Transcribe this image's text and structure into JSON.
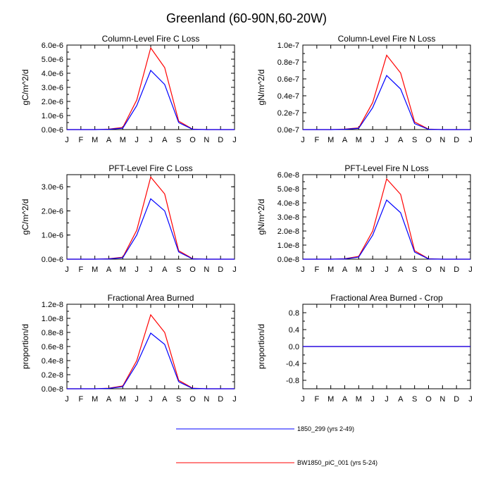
{
  "figure_title": "Greenland (60-90N,60-20W)",
  "colors": {
    "series_1": "#0000ff",
    "series_2": "#ff0000",
    "axis": "#000000"
  },
  "legend": [
    {
      "label": "1850_299 (yrs 2-49)",
      "color": "#0000ff"
    },
    {
      "label": "BW1850_piC_001 (yrs 5-24)",
      "color": "#ff0000"
    }
  ],
  "chart_data": [
    {
      "type": "line",
      "title": "Column-Level Fire C Loss",
      "ylabel": "gC/m^2/d",
      "categories": [
        "J",
        "F",
        "M",
        "A",
        "M",
        "J",
        "J",
        "A",
        "S",
        "O",
        "N",
        "D",
        "J"
      ],
      "ylim": [
        0,
        6e-06
      ],
      "yticks": [
        0,
        1e-06,
        2e-06,
        3e-06,
        4e-06,
        5e-06,
        6e-06
      ],
      "yticklabels": [
        "0.0e-6",
        "1.0e-6",
        "2.0e-6",
        "3.0e-6",
        "4.0e-6",
        "5.0e-6",
        "6.0e-6"
      ],
      "series": [
        {
          "name": "1850_299 (yrs 2-49)",
          "color": "#0000ff",
          "values": [
            0,
            0,
            0,
            2e-08,
            1e-07,
            1.7e-06,
            4.2e-06,
            3.2e-06,
            5e-07,
            2e-08,
            0,
            0,
            0
          ]
        },
        {
          "name": "BW1850_piC_001 (yrs 5-24)",
          "color": "#ff0000",
          "values": [
            0,
            0,
            0,
            3e-08,
            1.5e-07,
            2.1e-06,
            5.8e-06,
            4.4e-06,
            6e-07,
            3e-08,
            0,
            0,
            0
          ]
        }
      ]
    },
    {
      "type": "line",
      "title": "Column-Level Fire N Loss",
      "ylabel": "gN/m^2/d",
      "categories": [
        "J",
        "F",
        "M",
        "A",
        "M",
        "J",
        "J",
        "A",
        "S",
        "O",
        "N",
        "D",
        "J"
      ],
      "ylim": [
        0,
        1e-07
      ],
      "yticks": [
        0,
        2e-08,
        4e-08,
        6e-08,
        8e-08,
        1e-07
      ],
      "yticklabels": [
        "0.0e-7",
        "0.2e-7",
        "0.4e-7",
        "0.6e-7",
        "0.8e-7",
        "1.0e-7"
      ],
      "series": [
        {
          "name": "1850_299 (yrs 2-49)",
          "color": "#0000ff",
          "values": [
            0,
            0,
            0,
            3e-10,
            1.5e-09,
            2.6e-08,
            6.4e-08,
            4.8e-08,
            7e-09,
            3e-10,
            0,
            0,
            0
          ]
        },
        {
          "name": "BW1850_piC_001 (yrs 5-24)",
          "color": "#ff0000",
          "values": [
            0,
            0,
            0,
            5e-10,
            2e-09,
            3.2e-08,
            8.8e-08,
            6.7e-08,
            9e-09,
            5e-10,
            0,
            0,
            0
          ]
        }
      ]
    },
    {
      "type": "line",
      "title": "PFT-Level Fire C Loss",
      "ylabel": "gC/m^2/d",
      "categories": [
        "J",
        "F",
        "M",
        "A",
        "M",
        "J",
        "J",
        "A",
        "S",
        "O",
        "N",
        "D",
        "J"
      ],
      "ylim": [
        0,
        3.5e-06
      ],
      "yticks": [
        0,
        1e-06,
        2e-06,
        3e-06
      ],
      "yticklabels": [
        "0.0e-6",
        "1.0e-6",
        "2.0e-6",
        "3.0e-6"
      ],
      "series": [
        {
          "name": "1850_299 (yrs 2-49)",
          "color": "#0000ff",
          "values": [
            0,
            0,
            0,
            1e-08,
            6e-08,
            1e-06,
            2.5e-06,
            2e-06,
            3e-07,
            1e-08,
            0,
            0,
            0
          ]
        },
        {
          "name": "BW1850_piC_001 (yrs 5-24)",
          "color": "#ff0000",
          "values": [
            0,
            0,
            0,
            2e-08,
            8e-08,
            1.2e-06,
            3.4e-06,
            2.7e-06,
            3.5e-07,
            2e-08,
            0,
            0,
            0
          ]
        }
      ]
    },
    {
      "type": "line",
      "title": "PFT-Level Fire N Loss",
      "ylabel": "gN/m^2/d",
      "categories": [
        "J",
        "F",
        "M",
        "A",
        "M",
        "J",
        "J",
        "A",
        "S",
        "O",
        "N",
        "D",
        "J"
      ],
      "ylim": [
        0,
        6e-08
      ],
      "yticks": [
        0,
        1e-08,
        2e-08,
        3e-08,
        4e-08,
        5e-08,
        6e-08
      ],
      "yticklabels": [
        "0.0e-8",
        "1.0e-8",
        "2.0e-8",
        "3.0e-8",
        "4.0e-8",
        "5.0e-8",
        "6.0e-8"
      ],
      "series": [
        {
          "name": "1850_299 (yrs 2-49)",
          "color": "#0000ff",
          "values": [
            0,
            0,
            0,
            2e-10,
            1.5e-09,
            1.7e-08,
            4.2e-08,
            3.3e-08,
            5e-09,
            2e-10,
            0,
            0,
            0
          ]
        },
        {
          "name": "BW1850_piC_001 (yrs 5-24)",
          "color": "#ff0000",
          "values": [
            0,
            0,
            0,
            3e-10,
            2e-09,
            2e-08,
            5.7e-08,
            4.6e-08,
            6e-09,
            3e-10,
            0,
            0,
            0
          ]
        }
      ]
    },
    {
      "type": "line",
      "title": "Fractional Area Burned",
      "ylabel": "proportion/d",
      "categories": [
        "J",
        "F",
        "M",
        "A",
        "M",
        "J",
        "J",
        "A",
        "S",
        "O",
        "N",
        "D",
        "J"
      ],
      "ylim": [
        0,
        1.2e-08
      ],
      "yticks": [
        0,
        2e-09,
        4e-09,
        6e-09,
        8e-09,
        1e-08,
        1.2e-08
      ],
      "yticklabels": [
        "0.0e-8",
        "0.2e-8",
        "0.4e-8",
        "0.6e-8",
        "0.8e-8",
        "1.0e-8",
        "1.2e-8"
      ],
      "series": [
        {
          "name": "1850_299 (yrs 2-49)",
          "color": "#0000ff",
          "values": [
            0,
            0,
            0,
            5e-11,
            3e-10,
            3.5e-09,
            7.9e-09,
            6.3e-09,
            1e-09,
            5e-11,
            0,
            0,
            0
          ]
        },
        {
          "name": "BW1850_piC_001 (yrs 5-24)",
          "color": "#ff0000",
          "values": [
            0,
            0,
            0,
            8e-11,
            4e-10,
            4e-09,
            1.05e-08,
            8e-09,
            1.2e-09,
            8e-11,
            0,
            0,
            0
          ]
        }
      ]
    },
    {
      "type": "line",
      "title": "Fractional Area Burned - Crop",
      "ylabel": "proportion/d",
      "categories": [
        "J",
        "F",
        "M",
        "A",
        "M",
        "J",
        "J",
        "A",
        "S",
        "O",
        "N",
        "D",
        "J"
      ],
      "ylim": [
        -1.0,
        1.0
      ],
      "yticks": [
        -0.8,
        -0.4,
        0,
        0.4,
        0.8
      ],
      "yticklabels": [
        "-0.8",
        "-0.4",
        "0.0",
        "0.4",
        "0.8"
      ],
      "series": [
        {
          "name": "1850_299 (yrs 2-49)",
          "color": "#0000ff",
          "values": [
            0,
            0,
            0,
            0,
            0,
            0,
            0,
            0,
            0,
            0,
            0,
            0,
            0
          ]
        },
        {
          "name": "BW1850_piC_001 (yrs 5-24)",
          "color": "#ff0000",
          "values": [
            0,
            0,
            0,
            0,
            0,
            0,
            0,
            0,
            0,
            0,
            0,
            0,
            0
          ]
        }
      ]
    }
  ]
}
